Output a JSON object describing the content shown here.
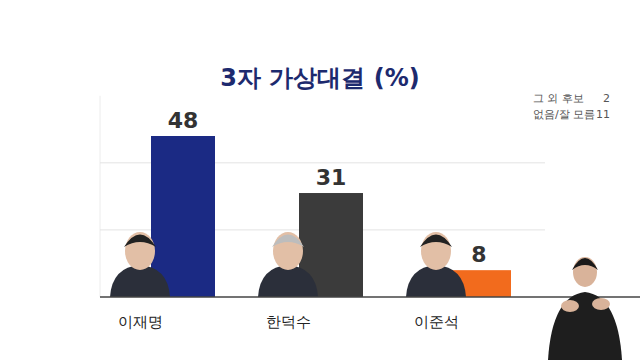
{
  "chart_data": {
    "type": "bar",
    "title": "3자 가상대결 (%)",
    "categories": [
      "이재명",
      "한덕수",
      "이준석"
    ],
    "values": [
      48,
      31,
      8
    ],
    "colors": [
      "#1b2a84",
      "#3b3b3b",
      "#f26b1d"
    ],
    "ylim": [
      0,
      60
    ],
    "yticks": [
      0,
      20,
      40
    ],
    "grid": true,
    "data_labels": true,
    "tick_labels": false,
    "annotations": [
      {
        "label": "그 외 후보",
        "value": 2
      },
      {
        "label": "없음/잘 모름",
        "value": 11
      }
    ]
  }
}
